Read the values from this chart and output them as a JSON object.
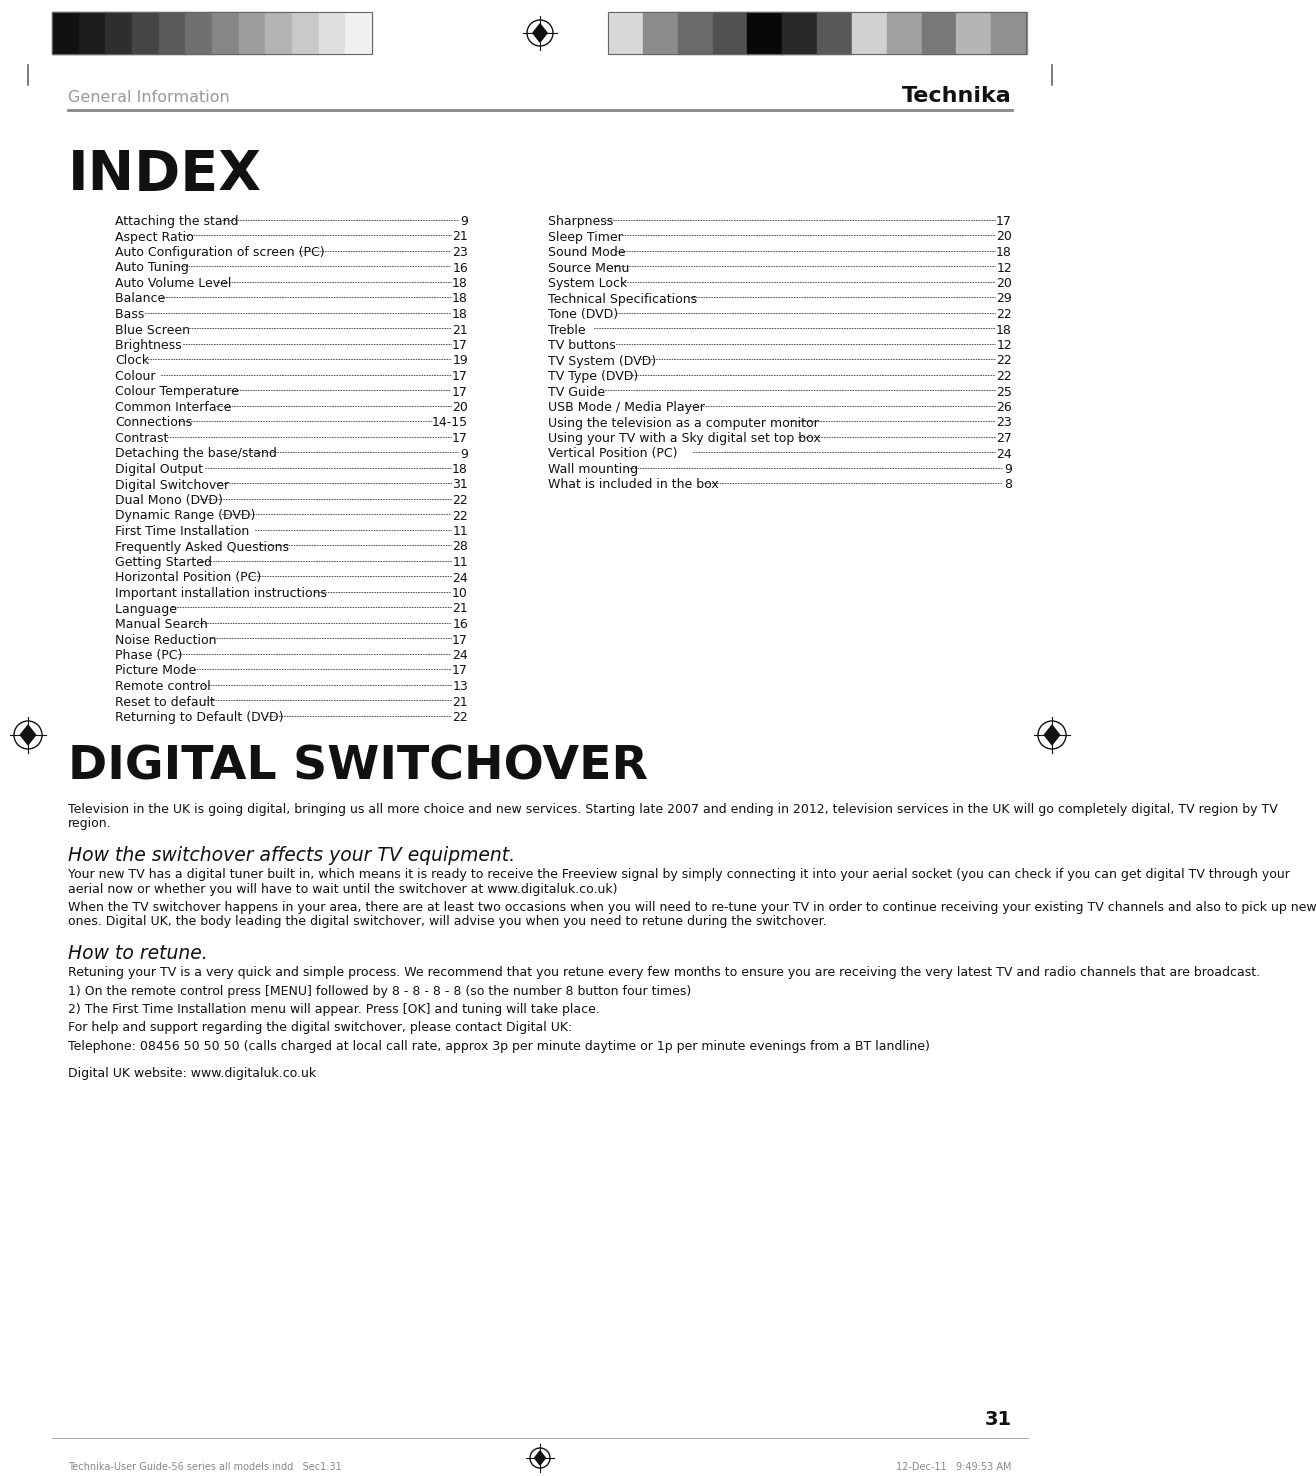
{
  "page_bg": "#ffffff",
  "header_text_left": "General Information",
  "header_text_right": "Technika",
  "page_number": "31",
  "index_title": "INDEX",
  "index_left_col": [
    [
      "Attaching the stand",
      "9"
    ],
    [
      "Aspect Ratio",
      "21"
    ],
    [
      "Auto Configuration of screen (PC)",
      "23"
    ],
    [
      "Auto Tuning",
      "16"
    ],
    [
      "Auto Volume Level ",
      "18"
    ],
    [
      "Balance ",
      "18"
    ],
    [
      "Bass ",
      "18"
    ],
    [
      "Blue Screen  ",
      "21"
    ],
    [
      "Brightness  ",
      "17"
    ],
    [
      "Clock",
      "19"
    ],
    [
      "Colour  ",
      "17"
    ],
    [
      "Colour Temperature  ",
      "17"
    ],
    [
      "Common Interface  ",
      "20"
    ],
    [
      "Connections",
      "14-15"
    ],
    [
      "Contrast ",
      "17"
    ],
    [
      "Detaching the base/stand",
      "9"
    ],
    [
      "Digital Output  ",
      "18"
    ],
    [
      "Digital Switchover",
      "31"
    ],
    [
      "Dual Mono (DVD)",
      "22"
    ],
    [
      "Dynamic Range (DVD)",
      "22"
    ],
    [
      "First Time Installation  ",
      "11"
    ],
    [
      "Frequently Asked Questions",
      "28"
    ],
    [
      "Getting Started",
      "11"
    ],
    [
      "Horizontal Position (PC)",
      "24"
    ],
    [
      "Important installation instructions ",
      "10"
    ],
    [
      "Language  ",
      "21"
    ],
    [
      "Manual Search",
      "16"
    ],
    [
      "Noise Reduction  ",
      "17"
    ],
    [
      "Phase (PC) ",
      "24"
    ],
    [
      "Picture Mode  ",
      "17"
    ],
    [
      "Remote control ",
      "13"
    ],
    [
      "Reset to default",
      "21"
    ],
    [
      "Returning to Default (DVD) ",
      "22"
    ]
  ],
  "index_right_col": [
    [
      "Sharpness ",
      "17"
    ],
    [
      "Sleep Timer  ",
      "20"
    ],
    [
      "Sound Mode  ",
      "18"
    ],
    [
      "Source Menu",
      "12"
    ],
    [
      "System Lock  ",
      "20"
    ],
    [
      "Technical Specifications ",
      "29"
    ],
    [
      "Tone (DVD)  ",
      "22"
    ],
    [
      "Treble  ",
      "18"
    ],
    [
      "TV buttons  ",
      "12"
    ],
    [
      "TV System (DVD) ",
      "22"
    ],
    [
      "TV Type (DVD) ",
      "22"
    ],
    [
      "TV Guide  ",
      "25"
    ],
    [
      "USB Mode / Media Player ",
      "26"
    ],
    [
      "Using the television as a computer monitor ",
      "23"
    ],
    [
      "Using your TV with a Sky digital set top box ",
      "27"
    ],
    [
      "Vertical Position (PC)    ",
      "24"
    ],
    [
      "Wall mounting ",
      "9"
    ],
    [
      "What is included in the box ",
      "8"
    ]
  ],
  "switchover_title": "DIGITAL SWITCHOVER",
  "switchover_body1": "Television in the UK is going digital, bringing us all more choice and new services. Starting late 2007 and ending in 2012, television services in the UK will go completely digital, TV region by TV region.",
  "how_affects_title": "How the switchover affects your TV equipment.",
  "how_affects_body": "Your new TV has a digital tuner built in, which means it is ready to receive the Freeview signal by simply connecting it into your aerial socket (you can check if you can get digital TV through your aerial now or whether you will have to wait until the switchover at www.digitaluk.co.uk)\nWhen the TV switchover happens in your area, there are at least two occasions when you will need to re-tune your TV in order to continue receiving your existing TV channels and also to pick up new ones. Digital UK, the body leading the digital switchover, will advise you when you need to retune during the switchover.",
  "how_retune_title": "How to retune.",
  "how_retune_body": "Retuning your TV is a very quick and simple process. We recommend that you retune every few months to ensure you are receiving the very latest TV and radio channels that are broadcast.\n1) On the remote control press [MENU] followed by 8 - 8 - 8 - 8 (so the number 8 button four times)\n2) The First Time Installation menu will appear. Press [OK] and tuning will take place.\nFor help and support regarding the digital switchover, please contact Digital UK:\nTelephone: 08456 50 50 50 (calls charged at local call rate, approx 3p per minute daytime or  1p per minute evenings from a BT landline)\n\nDigital UK website: www.digitaluk.co.uk",
  "footer_left": "Technika-User Guide-56 series all models.indd   Sec1:31",
  "footer_right": "12-Dec-11   9:49:53 AM",
  "left_colors": [
    "#111111",
    "#1c1c1c",
    "#2e2e2e",
    "#454545",
    "#5a5a5a",
    "#707070",
    "#868686",
    "#9d9d9d",
    "#b3b3b3",
    "#c9c9c9",
    "#dfdfdf",
    "#f0f0f0"
  ],
  "right_colors": [
    "#d8d8d8",
    "#8c8c8c",
    "#6a6a6a",
    "#505050",
    "#080808",
    "#282828",
    "#585858",
    "#d0d0d0",
    "#a0a0a0",
    "#787878",
    "#b5b5b5",
    "#909090"
  ]
}
